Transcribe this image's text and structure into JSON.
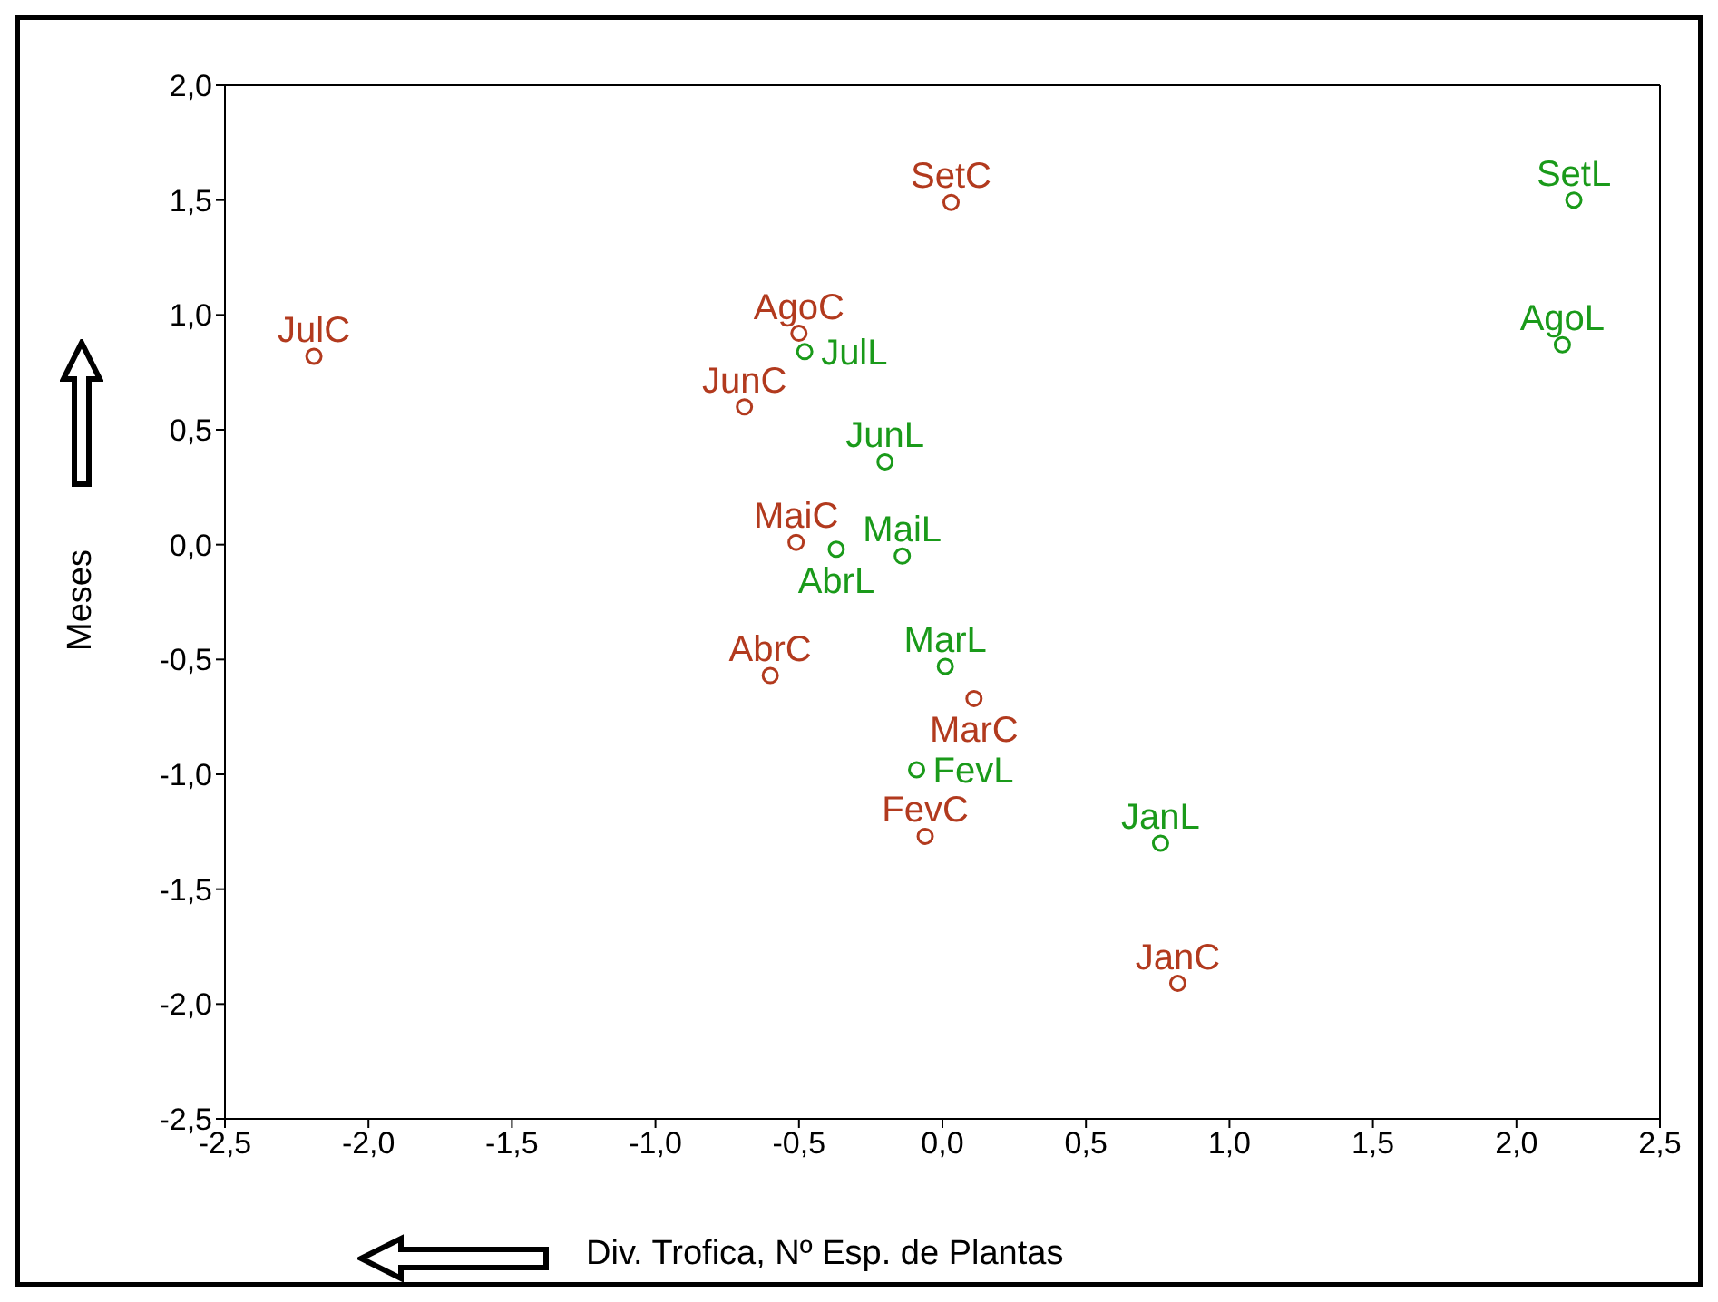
{
  "chart_data": {
    "type": "scatter",
    "xlabel": "Div. Trofica, Nº Esp. de Plantas",
    "ylabel": "Meses",
    "xlim": [
      -2.5,
      2.5
    ],
    "ylim": [
      -2.5,
      2.0
    ],
    "xticks": [
      {
        "value": -2.5,
        "label": "-2,5"
      },
      {
        "value": -2,
        "label": "-2,0"
      },
      {
        "value": -1.5,
        "label": "-1,5"
      },
      {
        "value": -1,
        "label": "-1,0"
      },
      {
        "value": -0.5,
        "label": "-0,5"
      },
      {
        "value": 0,
        "label": "0,0"
      },
      {
        "value": 0.5,
        "label": "0,5"
      },
      {
        "value": 1,
        "label": "1,0"
      },
      {
        "value": 1.5,
        "label": "1,5"
      },
      {
        "value": 2,
        "label": "2,0"
      },
      {
        "value": 2.5,
        "label": "2,5"
      }
    ],
    "yticks": [
      {
        "value": -2.5,
        "label": "-2,5"
      },
      {
        "value": -2,
        "label": "-2,0"
      },
      {
        "value": -1.5,
        "label": "-1,5"
      },
      {
        "value": -1,
        "label": "-1,0"
      },
      {
        "value": -0.5,
        "label": "-0,5"
      },
      {
        "value": 0,
        "label": "0,0"
      },
      {
        "value": 0.5,
        "label": "0,5"
      },
      {
        "value": 1,
        "label": "1,0"
      },
      {
        "value": 1.5,
        "label": "1,5"
      },
      {
        "value": 2,
        "label": "2,0"
      }
    ],
    "legend": false,
    "marker": "circle",
    "series": [
      {
        "color": "#b23a1e",
        "x": [
          -2.19,
          -0.5,
          0.03,
          -0.69,
          -0.51,
          -0.6,
          0.11,
          -0.06,
          0.82
        ],
        "values": [
          0.82,
          0.92,
          1.49,
          0.6,
          0.01,
          -0.57,
          -0.67,
          -1.27,
          -1.91
        ],
        "value_labels": [
          "JulC",
          "AgoC",
          "SetC",
          "JunC",
          "MaiC",
          "AbrC",
          "MarC",
          "FevC",
          "JanC"
        ]
      },
      {
        "color": "#1a9a1a",
        "x": [
          2.2,
          2.16,
          -0.48,
          -0.2,
          -0.37,
          -0.14,
          0.01,
          -0.09,
          0.76
        ],
        "values": [
          1.5,
          0.87,
          0.84,
          0.36,
          -0.02,
          -0.05,
          -0.53,
          -0.98,
          -1.3
        ],
        "value_labels": [
          "SetL",
          "AgoL",
          "JulL",
          "JunL",
          "AbrL",
          "MaiL",
          "MarL",
          "FevL",
          "JanL"
        ]
      }
    ]
  }
}
